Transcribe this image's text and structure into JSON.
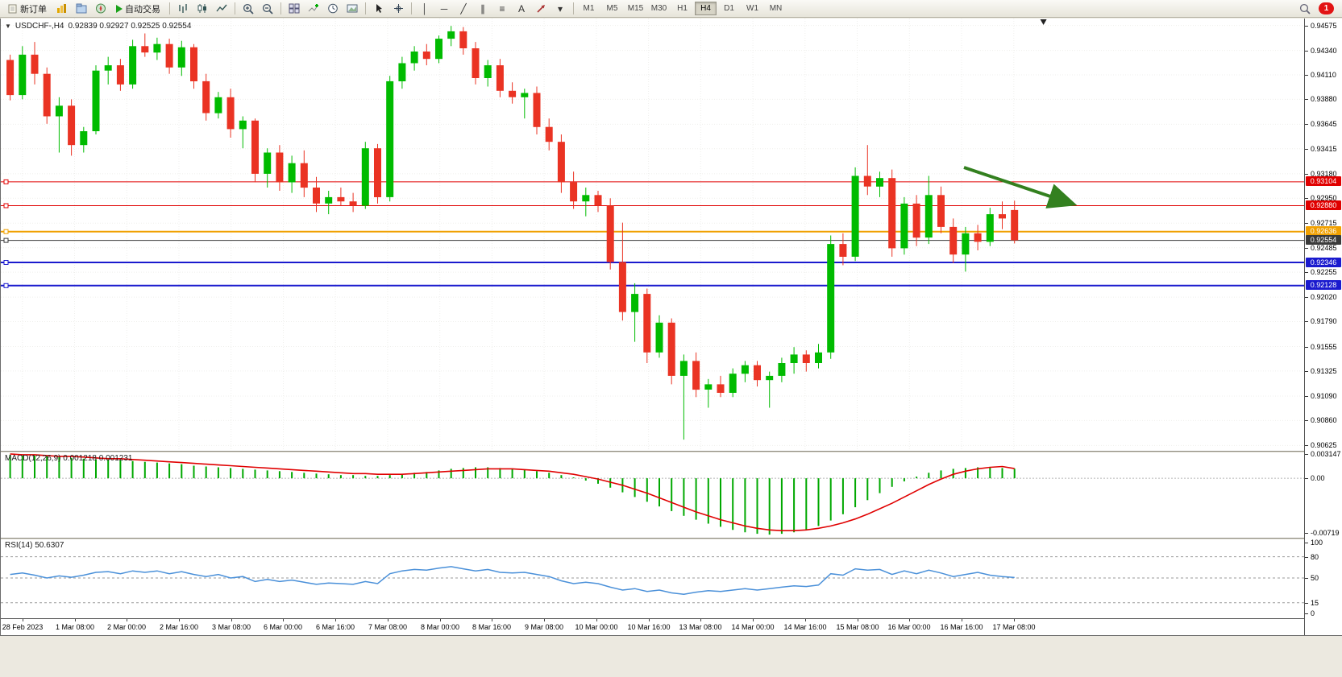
{
  "toolbar": {
    "new_order": "新订单",
    "auto_trading": "自动交易",
    "timeframes": [
      "M1",
      "M5",
      "M15",
      "M30",
      "H1",
      "H4",
      "D1",
      "W1",
      "MN"
    ],
    "active_timeframe": "H4",
    "notification_count": "1",
    "draw_tools": [
      {
        "glyph": "│"
      },
      {
        "glyph": "─"
      },
      {
        "glyph": "╱"
      },
      {
        "glyph": "∥"
      },
      {
        "glyph": "≡"
      },
      {
        "glyph": "A"
      },
      {
        "glyph": "▾"
      }
    ]
  },
  "chart_header": {
    "symbol": "USDCHF-,H4",
    "ohlc": "0.92839 0.92927 0.92525 0.92554",
    "collapse_glyph": "▼"
  },
  "indicators": {
    "macd_label": "MACD(12,26,9) 0.001218 0.001231",
    "rsi_label": "RSI(14) 50.6307"
  },
  "colors": {
    "up": "#00bb00",
    "down": "#ea3323",
    "macd_hist": "#00a800",
    "macd_signal": "#e00000",
    "rsi_line": "#4a90d9",
    "grid": "#efefec",
    "arrow": "#33801f"
  },
  "chart_data": {
    "type": "candlestick",
    "symbol": "USDCHF",
    "timeframe": "H4",
    "current_ohlc": {
      "open": 0.92839,
      "high": 0.92927,
      "low": 0.92525,
      "close": 0.92554
    },
    "price_range": [
      0.90575,
      0.9464
    ],
    "price_ticks": [
      "0.94575",
      "0.94340",
      "0.94110",
      "0.93880",
      "0.93645",
      "0.93415",
      "0.93180",
      "0.92950",
      "0.92715",
      "0.92485",
      "0.92255",
      "0.92020",
      "0.91790",
      "0.91555",
      "0.91325",
      "0.91090",
      "0.90860",
      "0.90625"
    ],
    "levels": [
      {
        "price": 0.93104,
        "label": "0.93104",
        "color": "#e00000",
        "width": 1
      },
      {
        "price": 0.9288,
        "label": "0.92880",
        "color": "#e00000",
        "width": 1
      },
      {
        "price": 0.92636,
        "label": "0.92636",
        "color": "#f0a000",
        "width": 2
      },
      {
        "price": 0.92554,
        "label": "0.92554",
        "color": "#3a3a3a",
        "width": 1
      },
      {
        "price": 0.92346,
        "label": "0.92346",
        "color": "#1a1ace",
        "width": 2
      },
      {
        "price": 0.92128,
        "label": "0.92128",
        "color": "#1a1ace",
        "width": 2
      }
    ],
    "candles": [
      [
        0.9425,
        0.943,
        0.9387,
        0.9392
      ],
      [
        0.9392,
        0.9438,
        0.9388,
        0.943
      ],
      [
        0.943,
        0.9442,
        0.9402,
        0.9412
      ],
      [
        0.9412,
        0.9418,
        0.9365,
        0.9372
      ],
      [
        0.9372,
        0.939,
        0.9338,
        0.9382
      ],
      [
        0.9382,
        0.9388,
        0.9335,
        0.9345
      ],
      [
        0.9345,
        0.9362,
        0.9338,
        0.9358
      ],
      [
        0.9358,
        0.942,
        0.9355,
        0.9415
      ],
      [
        0.9415,
        0.9428,
        0.9402,
        0.942
      ],
      [
        0.942,
        0.9426,
        0.9396,
        0.9402
      ],
      [
        0.9402,
        0.9444,
        0.9398,
        0.9438
      ],
      [
        0.9438,
        0.945,
        0.9428,
        0.9432
      ],
      [
        0.9432,
        0.9446,
        0.9425,
        0.944
      ],
      [
        0.944,
        0.9445,
        0.9412,
        0.9418
      ],
      [
        0.9418,
        0.9443,
        0.941,
        0.9437
      ],
      [
        0.9437,
        0.944,
        0.9398,
        0.9405
      ],
      [
        0.9405,
        0.9412,
        0.9368,
        0.9375
      ],
      [
        0.9375,
        0.9395,
        0.937,
        0.939
      ],
      [
        0.939,
        0.9398,
        0.9352,
        0.936
      ],
      [
        0.936,
        0.9372,
        0.9342,
        0.9368
      ],
      [
        0.9368,
        0.937,
        0.931,
        0.9318
      ],
      [
        0.9318,
        0.9342,
        0.9305,
        0.9338
      ],
      [
        0.9338,
        0.9345,
        0.9302,
        0.931
      ],
      [
        0.931,
        0.9335,
        0.93,
        0.9328
      ],
      [
        0.9328,
        0.934,
        0.9296,
        0.9305
      ],
      [
        0.9305,
        0.9315,
        0.9282,
        0.929
      ],
      [
        0.929,
        0.9302,
        0.928,
        0.9296
      ],
      [
        0.9296,
        0.9305,
        0.9288,
        0.9292
      ],
      [
        0.9292,
        0.93,
        0.9282,
        0.9288
      ],
      [
        0.9288,
        0.9348,
        0.9285,
        0.9342
      ],
      [
        0.9342,
        0.9346,
        0.929,
        0.9296
      ],
      [
        0.9296,
        0.941,
        0.9292,
        0.9405
      ],
      [
        0.9405,
        0.9428,
        0.9398,
        0.9422
      ],
      [
        0.9422,
        0.9438,
        0.9415,
        0.9433
      ],
      [
        0.9433,
        0.944,
        0.942,
        0.9426
      ],
      [
        0.9426,
        0.9448,
        0.9422,
        0.9445
      ],
      [
        0.9445,
        0.9457,
        0.9438,
        0.9452
      ],
      [
        0.9452,
        0.9456,
        0.943,
        0.9436
      ],
      [
        0.9436,
        0.9442,
        0.9402,
        0.9408
      ],
      [
        0.9408,
        0.9425,
        0.94,
        0.942
      ],
      [
        0.942,
        0.9426,
        0.939,
        0.9396
      ],
      [
        0.9396,
        0.9404,
        0.9384,
        0.939
      ],
      [
        0.939,
        0.9398,
        0.937,
        0.9394
      ],
      [
        0.9394,
        0.94,
        0.9355,
        0.9362
      ],
      [
        0.9362,
        0.937,
        0.934,
        0.9348
      ],
      [
        0.9348,
        0.9355,
        0.93,
        0.931
      ],
      [
        0.931,
        0.932,
        0.9285,
        0.9292
      ],
      [
        0.9292,
        0.9305,
        0.9278,
        0.9298
      ],
      [
        0.9298,
        0.9302,
        0.9282,
        0.9288
      ],
      [
        0.9288,
        0.9295,
        0.9228,
        0.9235
      ],
      [
        0.9235,
        0.9272,
        0.918,
        0.9188
      ],
      [
        0.9188,
        0.9215,
        0.916,
        0.9205
      ],
      [
        0.9205,
        0.921,
        0.914,
        0.915
      ],
      [
        0.915,
        0.9185,
        0.9145,
        0.9178
      ],
      [
        0.9178,
        0.9182,
        0.912,
        0.9128
      ],
      [
        0.9128,
        0.9148,
        0.9068,
        0.9142
      ],
      [
        0.9142,
        0.915,
        0.9108,
        0.9115
      ],
      [
        0.9115,
        0.9125,
        0.9098,
        0.912
      ],
      [
        0.912,
        0.9128,
        0.9108,
        0.9112
      ],
      [
        0.9112,
        0.9135,
        0.9108,
        0.913
      ],
      [
        0.913,
        0.9142,
        0.9122,
        0.9138
      ],
      [
        0.9138,
        0.9142,
        0.9118,
        0.9124
      ],
      [
        0.9124,
        0.9132,
        0.9098,
        0.9128
      ],
      [
        0.9128,
        0.9145,
        0.9122,
        0.914
      ],
      [
        0.914,
        0.9155,
        0.913,
        0.9148
      ],
      [
        0.9148,
        0.9152,
        0.9132,
        0.914
      ],
      [
        0.914,
        0.9158,
        0.9135,
        0.915
      ],
      [
        0.915,
        0.926,
        0.9144,
        0.9252
      ],
      [
        0.9252,
        0.9262,
        0.9232,
        0.924
      ],
      [
        0.924,
        0.9324,
        0.9236,
        0.9316
      ],
      [
        0.9316,
        0.9345,
        0.9298,
        0.9306
      ],
      [
        0.9306,
        0.932,
        0.9296,
        0.9314
      ],
      [
        0.9314,
        0.9322,
        0.924,
        0.9248
      ],
      [
        0.9248,
        0.9296,
        0.9242,
        0.929
      ],
      [
        0.929,
        0.9298,
        0.925,
        0.9258
      ],
      [
        0.9258,
        0.9316,
        0.9252,
        0.9298
      ],
      [
        0.9298,
        0.9306,
        0.9262,
        0.9268
      ],
      [
        0.9268,
        0.9276,
        0.9234,
        0.9242
      ],
      [
        0.9242,
        0.9268,
        0.9226,
        0.9262
      ],
      [
        0.9262,
        0.927,
        0.9246,
        0.9254
      ],
      [
        0.9254,
        0.9286,
        0.925,
        0.928
      ],
      [
        0.928,
        0.9292,
        0.9266,
        0.9276
      ],
      [
        0.92839,
        0.92927,
        0.92525,
        0.92554
      ]
    ],
    "macd": {
      "range": [
        -0.0076,
        0.0033
      ],
      "ticks": [
        "0.003147",
        "0.00",
        "-0.00719"
      ],
      "histogram": [
        0.003,
        0.0029,
        0.0029,
        0.0028,
        0.0027,
        0.0026,
        0.0025,
        0.0024,
        0.0024,
        0.0023,
        0.0022,
        0.0021,
        0.002,
        0.0019,
        0.0018,
        0.0016,
        0.0015,
        0.0014,
        0.0013,
        0.0012,
        0.0011,
        0.001,
        0.0009,
        0.0008,
        0.0007,
        0.0006,
        0.0005,
        0.0004,
        0.0004,
        0.0003,
        0.0003,
        0.0004,
        0.0005,
        0.0007,
        0.0008,
        0.001,
        0.0012,
        0.0013,
        0.0014,
        0.0014,
        0.0013,
        0.0012,
        0.0011,
        0.0009,
        0.0007,
        0.0004,
        0.0001,
        -0.0003,
        -0.0007,
        -0.0012,
        -0.0018,
        -0.0024,
        -0.003,
        -0.0036,
        -0.0042,
        -0.0048,
        -0.0053,
        -0.0058,
        -0.0062,
        -0.0066,
        -0.0069,
        -0.0071,
        -0.0072,
        -0.0071,
        -0.0069,
        -0.0066,
        -0.0061,
        -0.0054,
        -0.0046,
        -0.0037,
        -0.0028,
        -0.0019,
        -0.0011,
        -0.0004,
        0.0002,
        0.0007,
        0.001,
        0.0012,
        0.0013,
        0.0014,
        0.0014,
        0.0013,
        0.001218
      ],
      "signal": [
        0.0031,
        0.003,
        0.003,
        0.0029,
        0.0028,
        0.0028,
        0.0027,
        0.0026,
        0.0025,
        0.0025,
        0.0024,
        0.0023,
        0.0022,
        0.0021,
        0.002,
        0.0019,
        0.0018,
        0.0017,
        0.0016,
        0.0015,
        0.0014,
        0.0013,
        0.0012,
        0.0011,
        0.001,
        0.0009,
        0.0008,
        0.0007,
        0.0006,
        0.0006,
        0.0005,
        0.0005,
        0.0005,
        0.0006,
        0.0007,
        0.0008,
        0.0009,
        0.001,
        0.0011,
        0.0012,
        0.0012,
        0.0012,
        0.0011,
        0.001,
        0.0009,
        0.0007,
        0.0005,
        0.0002,
        -0.0001,
        -0.0005,
        -0.0009,
        -0.0014,
        -0.0019,
        -0.0025,
        -0.0031,
        -0.0037,
        -0.0043,
        -0.0048,
        -0.0053,
        -0.0057,
        -0.0061,
        -0.0064,
        -0.0066,
        -0.0067,
        -0.0067,
        -0.0066,
        -0.0064,
        -0.0061,
        -0.0057,
        -0.0052,
        -0.0046,
        -0.0039,
        -0.0032,
        -0.0024,
        -0.0016,
        -0.0008,
        -0.0001,
        0.0005,
        0.0009,
        0.0012,
        0.0014,
        0.0015,
        0.001231
      ]
    },
    "rsi": {
      "range": [
        0,
        100
      ],
      "ticks": [
        "100",
        "80",
        "50",
        "15",
        "0"
      ],
      "levels": [
        80,
        50,
        15
      ],
      "values": [
        55,
        57,
        54,
        50,
        53,
        51,
        54,
        58,
        59,
        56,
        60,
        58,
        60,
        56,
        59,
        55,
        52,
        55,
        50,
        52,
        45,
        48,
        45,
        47,
        44,
        41,
        43,
        42,
        41,
        45,
        42,
        56,
        60,
        62,
        61,
        64,
        66,
        63,
        60,
        62,
        58,
        57,
        58,
        55,
        52,
        46,
        42,
        44,
        42,
        37,
        33,
        35,
        31,
        33,
        29,
        27,
        30,
        32,
        31,
        33,
        35,
        33,
        35,
        37,
        39,
        38,
        40,
        56,
        54,
        63,
        61,
        62,
        55,
        60,
        56,
        61,
        57,
        52,
        55,
        58,
        54,
        52,
        50.63
      ]
    },
    "time_labels": [
      "28 Feb 2023",
      "1 Mar 08:00",
      "2 Mar 00:00",
      "2 Mar 16:00",
      "3 Mar 08:00",
      "6 Mar 00:00",
      "6 Mar 16:00",
      "7 Mar 08:00",
      "8 Mar 00:00",
      "8 Mar 16:00",
      "9 Mar 08:00",
      "10 Mar 00:00",
      "10 Mar 16:00",
      "13 Mar 08:00",
      "14 Mar 00:00",
      "14 Mar 16:00",
      "15 Mar 08:00",
      "16 Mar 00:00",
      "16 Mar 16:00",
      "17 Mar 08:00"
    ],
    "arrow": {
      "x1_frac": 0.739,
      "price1": 0.9324,
      "x2_frac": 0.82,
      "price2": 0.9291
    },
    "shift_marker_frac": 0.8
  }
}
